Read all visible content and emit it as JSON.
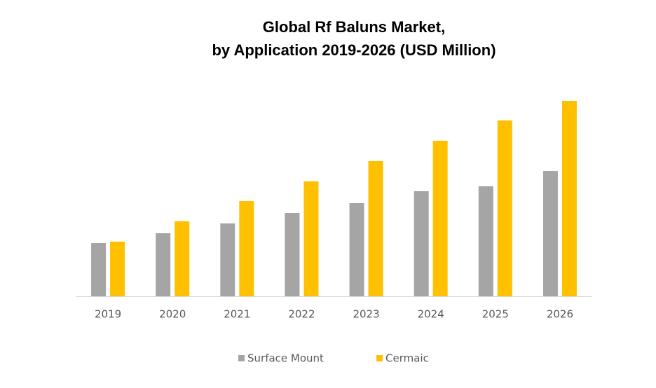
{
  "chart_data": {
    "type": "bar",
    "title": [
      "Global Rf Baluns Market,",
      "by Application 2019-2026 (USD Million)"
    ],
    "categories": [
      "2019",
      "2020",
      "2021",
      "2022",
      "2023",
      "2024",
      "2025",
      "2026"
    ],
    "series": [
      {
        "name": "Surface Mount",
        "color": "#a5a5a5",
        "values": [
          76,
          90,
          104,
          119,
          133,
          150,
          157,
          179
        ]
      },
      {
        "name": "Cermaic",
        "color": "#ffc000",
        "values": [
          78,
          107,
          136,
          164,
          193,
          222,
          251,
          279
        ]
      }
    ],
    "ylim": [
      0,
      300
    ],
    "grid": false,
    "legend": "bottom"
  }
}
